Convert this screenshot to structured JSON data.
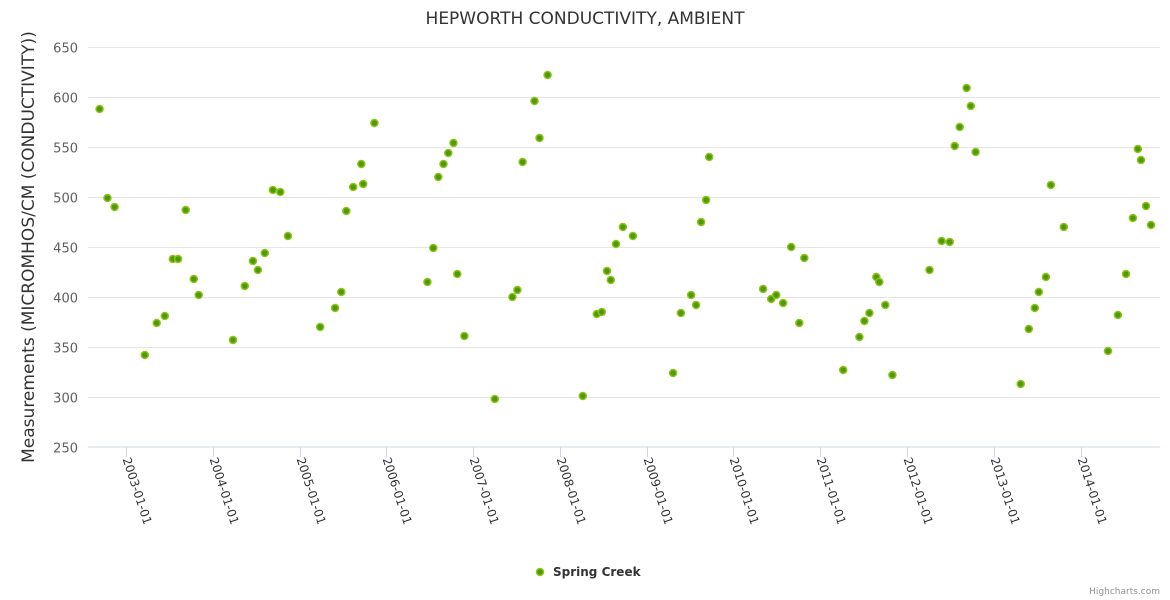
{
  "chart_data": {
    "type": "scatter",
    "title": "HEPWORTH CONDUCTIVITY, AMBIENT",
    "xlabel": "",
    "ylabel": "Measurements (MICROMHOS/CM (CONDUCTIVITY))",
    "ylim": [
      250,
      650
    ],
    "yticks": [
      250,
      300,
      350,
      400,
      450,
      500,
      550,
      600,
      650
    ],
    "xlim": [
      "2002-07-26",
      "2014-12-01"
    ],
    "xticks": [
      "2003-01-01",
      "2004-01-01",
      "2005-01-01",
      "2006-01-01",
      "2007-01-01",
      "2008-01-01",
      "2009-01-01",
      "2010-01-01",
      "2011-01-01",
      "2012-01-01",
      "2013-01-01",
      "2014-01-01"
    ],
    "grid": true,
    "legend_position": "bottom-center",
    "credits": "Highcharts.com",
    "colors": {
      "marker_fill": "#4f9a00",
      "marker_line": "#8cc31c",
      "grid": "#e6e6e6",
      "axis": "#ccd6eb"
    },
    "series": [
      {
        "name": "Spring Creek",
        "points": [
          [
            "2002-09-13",
            588
          ],
          [
            "2002-10-16",
            499
          ],
          [
            "2002-11-15",
            490
          ],
          [
            "2003-03-22",
            342
          ],
          [
            "2003-05-11",
            374
          ],
          [
            "2003-06-14",
            381
          ],
          [
            "2003-07-18",
            438
          ],
          [
            "2003-08-09",
            438
          ],
          [
            "2003-09-10",
            487
          ],
          [
            "2003-10-14",
            418
          ],
          [
            "2003-11-04",
            402
          ],
          [
            "2004-03-27",
            357
          ],
          [
            "2004-05-16",
            411
          ],
          [
            "2004-06-19",
            436
          ],
          [
            "2004-07-10",
            427
          ],
          [
            "2004-08-08",
            444
          ],
          [
            "2004-09-11",
            507
          ],
          [
            "2004-10-12",
            505
          ],
          [
            "2004-11-13",
            461
          ],
          [
            "2005-03-29",
            370
          ],
          [
            "2005-05-31",
            389
          ],
          [
            "2005-06-26",
            405
          ],
          [
            "2005-07-17",
            486
          ],
          [
            "2005-08-15",
            510
          ],
          [
            "2005-09-18",
            533
          ],
          [
            "2005-09-26",
            513
          ],
          [
            "2005-11-12",
            574
          ],
          [
            "2006-06-23",
            415
          ],
          [
            "2006-07-18",
            449
          ],
          [
            "2006-08-08",
            520
          ],
          [
            "2006-08-30",
            533
          ],
          [
            "2006-09-19",
            544
          ],
          [
            "2006-10-11",
            554
          ],
          [
            "2006-10-27",
            423
          ],
          [
            "2006-11-26",
            361
          ],
          [
            "2007-04-03",
            298
          ],
          [
            "2007-06-16",
            400
          ],
          [
            "2007-07-07",
            407
          ],
          [
            "2007-07-29",
            535
          ],
          [
            "2007-09-17",
            596
          ],
          [
            "2007-10-08",
            559
          ],
          [
            "2007-11-11",
            622
          ],
          [
            "2008-04-07",
            301
          ],
          [
            "2008-06-05",
            383
          ],
          [
            "2008-06-26",
            385
          ],
          [
            "2008-07-18",
            426
          ],
          [
            "2008-08-03",
            417
          ],
          [
            "2008-08-25",
            453
          ],
          [
            "2008-09-23",
            470
          ],
          [
            "2008-11-04",
            461
          ],
          [
            "2009-04-22",
            324
          ],
          [
            "2009-05-25",
            384
          ],
          [
            "2009-07-07",
            402
          ],
          [
            "2009-07-28",
            392
          ],
          [
            "2009-08-18",
            475
          ],
          [
            "2009-09-08",
            497
          ],
          [
            "2009-09-21",
            540
          ],
          [
            "2010-05-06",
            408
          ],
          [
            "2010-06-09",
            398
          ],
          [
            "2010-06-30",
            402
          ],
          [
            "2010-07-29",
            394
          ],
          [
            "2010-09-01",
            450
          ],
          [
            "2010-10-05",
            374
          ],
          [
            "2010-10-26",
            439
          ],
          [
            "2011-04-08",
            327
          ],
          [
            "2011-06-15",
            360
          ],
          [
            "2011-07-06",
            376
          ],
          [
            "2011-07-27",
            384
          ],
          [
            "2011-08-25",
            420
          ],
          [
            "2011-09-07",
            415
          ],
          [
            "2011-10-02",
            392
          ],
          [
            "2011-11-01",
            322
          ],
          [
            "2012-04-05",
            427
          ],
          [
            "2012-05-26",
            456
          ],
          [
            "2012-06-29",
            455
          ],
          [
            "2012-07-20",
            551
          ],
          [
            "2012-08-10",
            570
          ],
          [
            "2012-09-08",
            609
          ],
          [
            "2012-09-26",
            591
          ],
          [
            "2012-10-16",
            545
          ],
          [
            "2013-04-24",
            313
          ],
          [
            "2013-05-28",
            368
          ],
          [
            "2013-06-22",
            389
          ],
          [
            "2013-07-09",
            405
          ],
          [
            "2013-08-08",
            420
          ],
          [
            "2013-08-29",
            512
          ],
          [
            "2013-10-22",
            470
          ],
          [
            "2014-04-26",
            346
          ],
          [
            "2014-06-07",
            382
          ],
          [
            "2014-07-11",
            423
          ],
          [
            "2014-08-09",
            479
          ],
          [
            "2014-08-30",
            548
          ],
          [
            "2014-09-12",
            537
          ],
          [
            "2014-10-03",
            491
          ],
          [
            "2014-10-24",
            472
          ]
        ]
      }
    ]
  }
}
